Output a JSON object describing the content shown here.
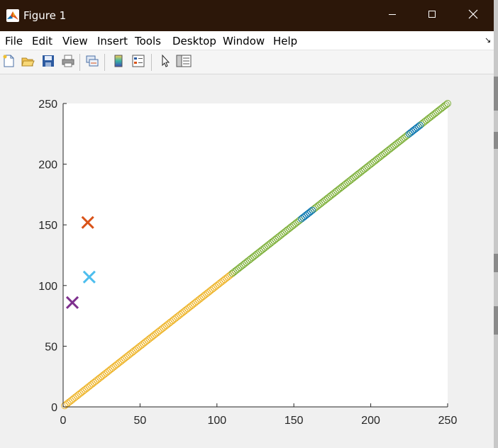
{
  "window": {
    "title": "Figure 1",
    "app_icon": "matlab-logo-icon",
    "controls": [
      "minimize-icon",
      "maximize-icon",
      "close-icon"
    ]
  },
  "menu": {
    "items": [
      "File",
      "Edit",
      "View",
      "Insert",
      "Tools",
      "Desktop",
      "Window",
      "Help"
    ],
    "dock_icon": "dock-arrow-icon"
  },
  "toolbar": {
    "tools": [
      "new-figure-icon",
      "open-file-icon",
      "save-icon",
      "print-icon",
      "link-plot-icon",
      "insert-colorbar-icon",
      "insert-legend-icon",
      "edit-plot-icon",
      "open-property-inspector-icon"
    ]
  },
  "colors": {
    "titlebar": "#2c1709",
    "diagonal_low": "#edb120",
    "diagonal_mid": "#77ac30",
    "diagonal_high_segments": "#0072bd",
    "marker_x_orange": "#d95319",
    "marker_x_cyan": "#4dbeee",
    "marker_x_purple": "#7e2f8e"
  },
  "chart_data": {
    "type": "scatter",
    "title": "",
    "xlabel": "",
    "ylabel": "",
    "xlim": [
      0,
      250
    ],
    "ylim": [
      0,
      250
    ],
    "xticks": [
      0,
      50,
      100,
      150,
      200,
      250
    ],
    "yticks": [
      0,
      50,
      100,
      150,
      200,
      250
    ],
    "grid": false,
    "series": [
      {
        "marker": "o",
        "color": "#edb120",
        "x_range": [
          1,
          110
        ],
        "y_equals_x": true
      },
      {
        "marker": "o",
        "color": "#77ac30",
        "x_range": [
          110,
          250
        ],
        "y_equals_x": true
      },
      {
        "marker": "o",
        "color": "#0072bd",
        "segments": [
          [
            155,
            162
          ],
          [
            225,
            232
          ]
        ],
        "y_equals_x": true
      },
      {
        "marker": "x",
        "color": "#d95319",
        "points": [
          [
            16,
            152
          ]
        ]
      },
      {
        "marker": "x",
        "color": "#4dbeee",
        "points": [
          [
            17,
            107
          ]
        ]
      },
      {
        "marker": "x",
        "color": "#7e2f8e",
        "points": [
          [
            6,
            86
          ]
        ]
      }
    ]
  }
}
